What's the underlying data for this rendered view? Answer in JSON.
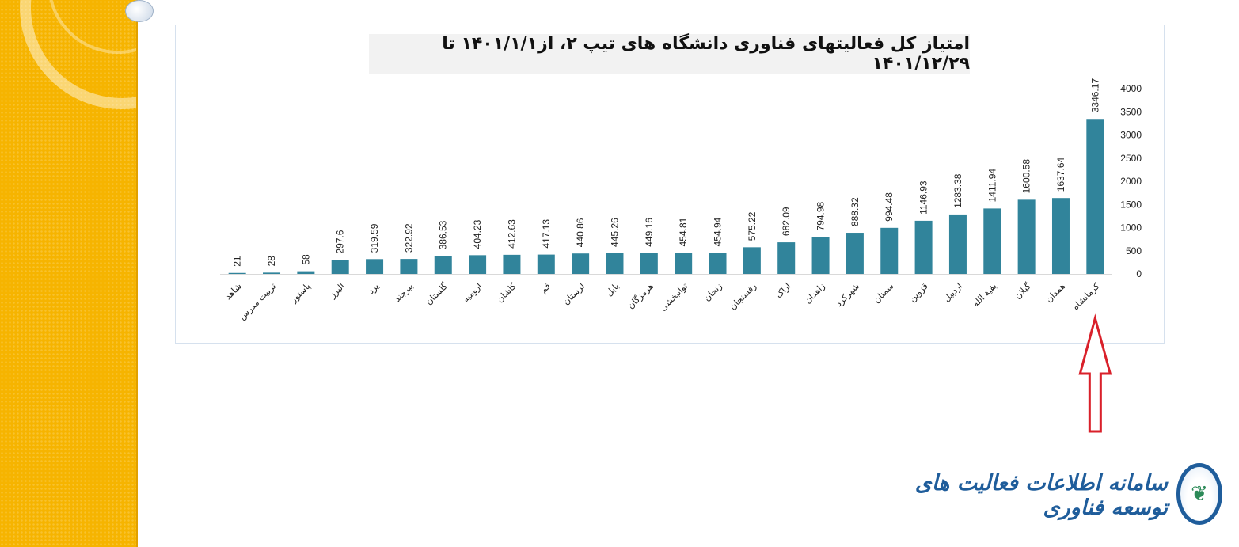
{
  "chart_data": {
    "type": "bar",
    "title": "امتیاز کل فعالیتهای فناوری دانشگاه های تیپ ۲، از۱۴۰۱/۱/۱ تا ۱۴۰۱/۱۲/۲۹",
    "categories": [
      "شاهد",
      "تربیت مدرس",
      "پاستور",
      "البرز",
      "یزد",
      "بیرجند",
      "گلستان",
      "ارومیه",
      "کاشان",
      "قم",
      "لرستان",
      "بابل",
      "هرمزگان",
      "توانبخشی",
      "زنجان",
      "رفسنجان",
      "اراک",
      "زاهدان",
      "شهرکرد",
      "سمنان",
      "قزوین",
      "اردبیل",
      "بقیة الله",
      "گیلان",
      "همدان",
      "کرمانشاه"
    ],
    "values": [
      21,
      28,
      58,
      297.6,
      319.59,
      322.92,
      386.53,
      404.23,
      412.63,
      417.13,
      440.86,
      445.26,
      449.16,
      454.81,
      454.94,
      575.22,
      682.09,
      794.98,
      888.32,
      994.48,
      1146.93,
      1283.38,
      1411.94,
      1600.58,
      1637.64,
      3346.17
    ],
    "data_labels": [
      "21",
      "28",
      "58",
      "297.6",
      "319.59",
      "322.92",
      "386.53",
      "404.23",
      "412.63",
      "417.13",
      "440.86",
      "445.26",
      "449.16",
      "454.81",
      "454.94",
      "575.22",
      "682.09",
      "794.98",
      "888.32",
      "994.48",
      "1146.93",
      "1283.38",
      "1411.94",
      "1600.58",
      "1637.64",
      "3346.17"
    ],
    "ylim": [
      0,
      4000
    ],
    "yticks": [
      0,
      500,
      1000,
      1500,
      2000,
      2500,
      3000,
      3500,
      4000
    ],
    "yaxis_side": "right",
    "grid": false,
    "bar_color": "#31849b",
    "annotation": {
      "type": "arrow",
      "target_category": "کرمانشاه",
      "color": "#d9202a"
    }
  },
  "logo": {
    "text": "سامانه اطلاعات فعالیت های توسعه فناوری",
    "icon": "leaf-emblem-icon",
    "color": "#1f5d9b"
  },
  "theme": {
    "side_band_color": "#f6b400"
  }
}
